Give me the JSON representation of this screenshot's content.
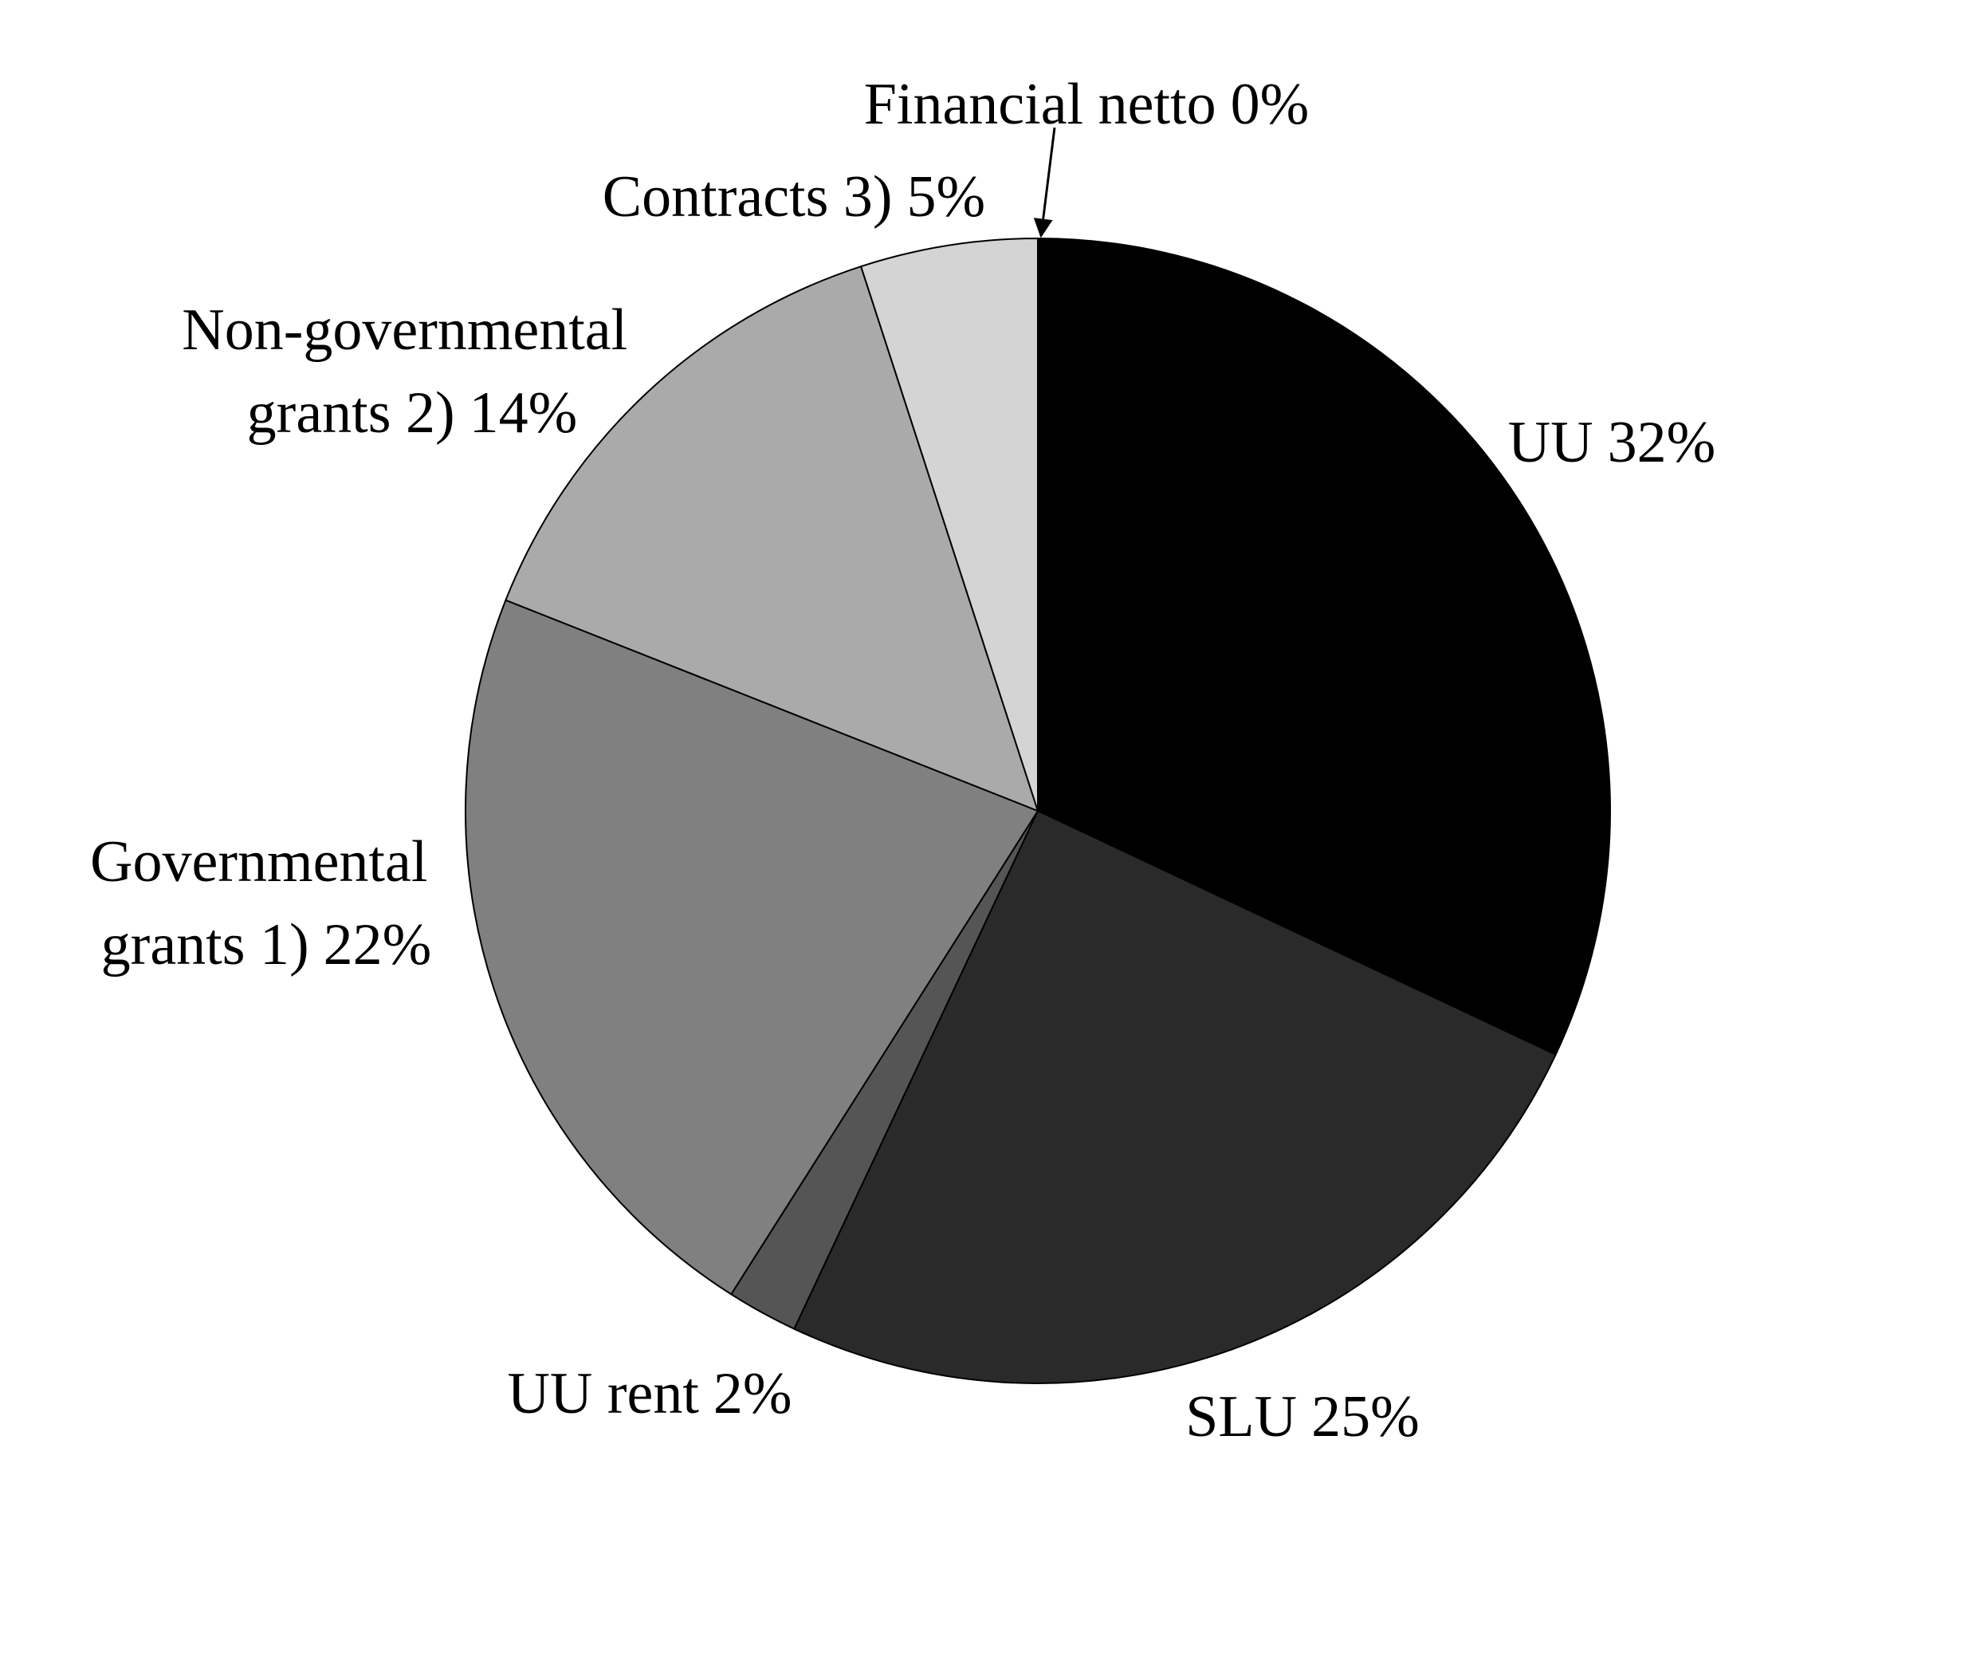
{
  "chart_data": {
    "type": "pie",
    "categories": [
      "UU",
      "SLU",
      "UU rent",
      "Governmental grants 1)",
      "Non-governmental grants 2)",
      "Contracts 3)",
      "Financial netto"
    ],
    "values": [
      32,
      25,
      2,
      22,
      14,
      5,
      0
    ],
    "value_labels": [
      "32%",
      "25%",
      "2%",
      "22%",
      "14%",
      "5%",
      "0%"
    ],
    "colors": [
      "#000000",
      "#2a2a2a",
      "#555555",
      "#808080",
      "#aaaaaa",
      "#d4d4d4",
      "#ffffff"
    ]
  }
}
